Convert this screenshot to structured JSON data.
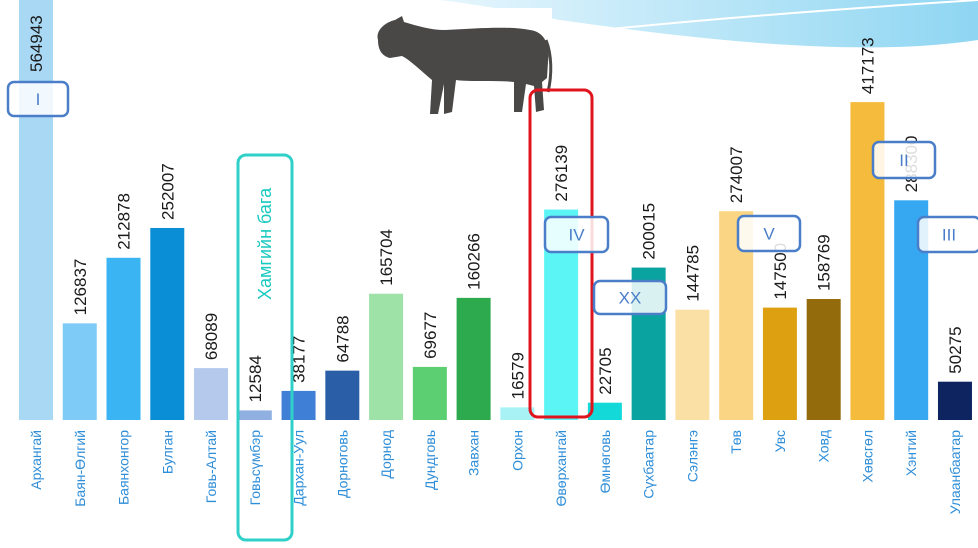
{
  "chart_data": {
    "type": "bar",
    "categories": [
      "Архангай",
      "Баян-Өлгий",
      "Баянхонгор",
      "Булган",
      "Говь-Алтай",
      "Говьсүмбэр",
      "Дархан-Уул",
      "Дорноговь",
      "Дорнод",
      "Дундговь",
      "Завхан",
      "Орхон",
      "Өвөрхангай",
      "Өмнөговь",
      "Сүхбаатар",
      "Сэлэнгэ",
      "Төв",
      "Увс",
      "Ховд",
      "Хөвсгөл",
      "Хэнтий",
      "Улаанбаатар"
    ],
    "values": [
      564943,
      126837,
      212878,
      252007,
      68089,
      12584,
      38177,
      64788,
      165704,
      69677,
      160266,
      16579,
      276139,
      22705,
      200015,
      144785,
      274007,
      147500,
      158769,
      417173,
      288300,
      50275
    ],
    "colors": [
      "#a9d8f5",
      "#7fcbf7",
      "#3bb4f3",
      "#0a8fd6",
      "#b4c9ec",
      "#8fb0e0",
      "#3f7fd6",
      "#2a5fa8",
      "#9fe2a8",
      "#5ccf72",
      "#2eaa4e",
      "#a8f2f5",
      "#5cf5f5",
      "#13d9d9",
      "#0aa3a0",
      "#fbe0a5",
      "#f9d584",
      "#dca011",
      "#946b0c",
      "#f5bb3c",
      "#36a8f2",
      "#0d2461"
    ],
    "annotations": [
      "I",
      "II",
      "III",
      "IV",
      "V",
      "XX"
    ],
    "note": "Хамгийн бага"
  }
}
